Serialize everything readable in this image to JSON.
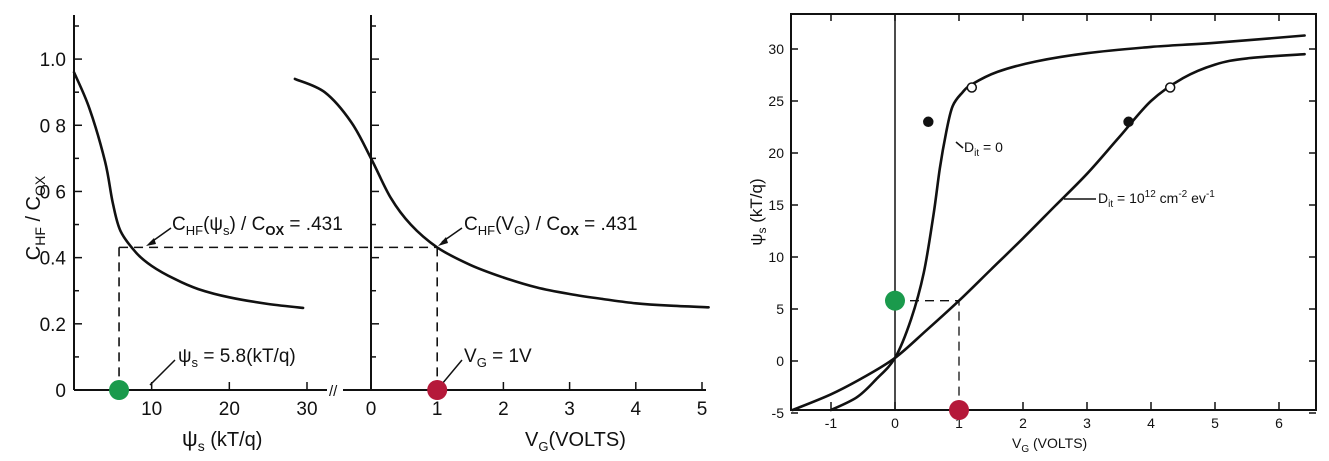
{
  "colors": {
    "green": "#1a9a4c",
    "red": "#b5193a",
    "ink": "#111111"
  },
  "chart_data": [
    {
      "type": "line",
      "panel": "left",
      "ylabel": "C_HF / C_OX",
      "yticks": [
        "0",
        "0.2",
        "0.4",
        "0 6",
        "0 8",
        "1.0"
      ],
      "ylim": [
        0,
        1.1
      ],
      "subplots": [
        {
          "xlabel": "ψs (kT/q)",
          "xlim": [
            0,
            34
          ],
          "xticks": [
            "10",
            "20",
            "30"
          ],
          "series": [
            {
              "name": "C_HF(ψs)/C_OX",
              "x": [
                0,
                2,
                4,
                5,
                6,
                8,
                10,
                13,
                16,
                20,
                25,
                29.5
              ],
              "y": [
                0.96,
                0.85,
                0.69,
                0.565,
                0.48,
                0.415,
                0.375,
                0.335,
                0.305,
                0.28,
                0.26,
                0.248
              ]
            }
          ],
          "annotations": [
            {
              "text": "C_HF(ψs) / C_OX = .431",
              "x": 5.8,
              "y": 0.431
            },
            {
              "text": "ψs = 5.8(kT/q)",
              "x": 5.8,
              "y": 0
            }
          ],
          "marker": {
            "x": 5.8,
            "y": 0,
            "color": "green"
          }
        },
        {
          "xlabel": "V_G (VOLTS)",
          "xlim": [
            -1.2,
            5.1
          ],
          "xticks": [
            "0",
            "1",
            "2",
            "3",
            "4",
            "5"
          ],
          "series": [
            {
              "name": "C_HF(V_G)/C_OX",
              "x": [
                -1.15,
                -0.7,
                -0.3,
                0,
                0.3,
                0.6,
                1,
                1.5,
                2,
                2.5,
                3,
                3.5,
                4,
                4.5,
                5.1
              ],
              "y": [
                0.94,
                0.9,
                0.81,
                0.7,
                0.58,
                0.5,
                0.431,
                0.378,
                0.34,
                0.31,
                0.29,
                0.275,
                0.262,
                0.255,
                0.25
              ]
            }
          ],
          "annotations": [
            {
              "text": "C_HF(V_G) / C_OX = .431",
              "x": 1,
              "y": 0.431
            },
            {
              "text": "V_G = 1V",
              "x": 1,
              "y": 0
            }
          ],
          "marker": {
            "x": 1,
            "y": 0,
            "color": "red"
          }
        }
      ]
    },
    {
      "type": "line",
      "panel": "right",
      "xlabel": "V_G (VOLTS)",
      "ylabel": "ψs (kT/q)",
      "xlim": [
        -1.6,
        6.4
      ],
      "ylim": [
        -5,
        32
      ],
      "xticks": [
        "-1",
        "0",
        "1",
        "2",
        "3",
        "4",
        "5",
        "6"
      ],
      "yticks": [
        "-5",
        "0",
        "5",
        "10",
        "15",
        "20",
        "25",
        "30"
      ],
      "series": [
        {
          "name": "D_it = 0",
          "x": [
            -1,
            -0.6,
            -0.3,
            0,
            0.25,
            0.45,
            0.6,
            0.7,
            0.8,
            0.9,
            1.05,
            1.2,
            1.6,
            2.2,
            3,
            4,
            5,
            6.4
          ],
          "y": [
            -5,
            -3.5,
            -1.8,
            0.3,
            4,
            8.5,
            14,
            18.5,
            22,
            24.5,
            25.8,
            26.6,
            27.8,
            28.8,
            29.6,
            30.2,
            30.6,
            31.3
          ]
        },
        {
          "name": "D_it = 10^12 cm^-2 eV^-1",
          "x": [
            -1.6,
            -1,
            -0.5,
            0,
            0.5,
            1,
            1.5,
            2,
            2.5,
            3,
            3.5,
            4,
            4.5,
            5,
            5.5,
            6.4
          ],
          "y": [
            -4.8,
            -3.2,
            -1.6,
            0.3,
            3,
            5.8,
            8.8,
            11.8,
            14.9,
            18,
            21.5,
            25,
            27.2,
            28.5,
            29.1,
            29.5
          ]
        }
      ],
      "points": [
        {
          "x": 0.52,
          "y": 23,
          "fill": "solid"
        },
        {
          "x": 1.2,
          "y": 26.3,
          "fill": "open"
        },
        {
          "x": 3.65,
          "y": 23,
          "fill": "solid"
        },
        {
          "x": 4.3,
          "y": 26.3,
          "fill": "open"
        }
      ],
      "annotations": [
        {
          "text": "D_it = 0"
        },
        {
          "text": "D_it = 10^12 cm^-2 eV^-1"
        }
      ],
      "guide": {
        "x": 1,
        "y": 5.8
      },
      "markers": [
        {
          "x": 0,
          "y": 5.8,
          "color": "green"
        },
        {
          "x": 1,
          "y": -5,
          "color": "red"
        }
      ]
    }
  ],
  "labels": {
    "left_ylabel": "C_HF / C_OX",
    "psi_symbol": "ψ",
    "s_sub": "s",
    "kTq": " (kT/q)",
    "vg_volts": "V_G(VOLTS)",
    "ann_psi_cap": "C_HF(ψs) / C_OX = .431",
    "ann_vg_cap": "C_HF(V_G) / C_OX = .431",
    "ann_psi_val": "ψs = 5.8(kT/q)",
    "ann_vg_val": "V_G = 1V",
    "dit0": "D_it = 0",
    "dit12": "D_it = 10^12 cm^-2 eV^-1",
    "right_xlabel": "V_G (VOLTS)",
    "right_ylabel": "ψs (kT/q)"
  }
}
